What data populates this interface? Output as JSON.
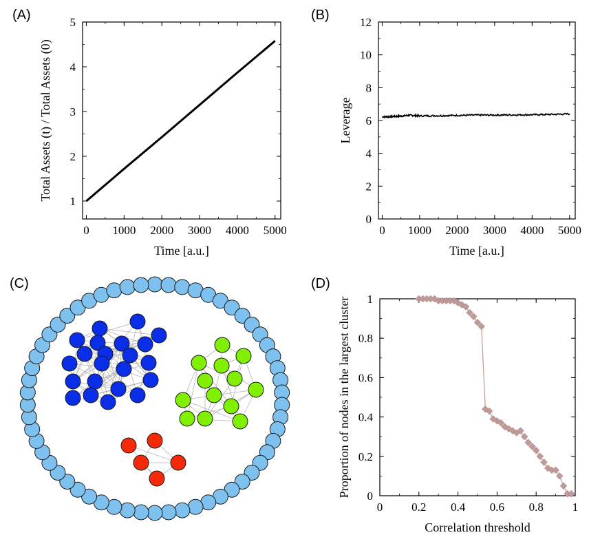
{
  "chart_data": [
    {
      "panel": "(A)",
      "type": "line",
      "xlabel": "Time [a.u.]",
      "ylabel": "Total Assets (t) / Total Assets (0)",
      "xlim": [
        -100,
        5150
      ],
      "ylim": [
        0.6,
        5
      ],
      "xticks": [
        0,
        1000,
        2000,
        3000,
        4000,
        5000
      ],
      "yticks": [
        1,
        2,
        3,
        4,
        5
      ],
      "series": [
        {
          "name": "total assets ratio",
          "x": [
            0,
            1000,
            2000,
            3000,
            4000,
            5000
          ],
          "y": [
            1.0,
            1.72,
            2.43,
            3.15,
            3.87,
            4.58
          ]
        }
      ]
    },
    {
      "panel": "(B)",
      "type": "line",
      "xlabel": "Time [a.u.]",
      "ylabel": "Leverage",
      "xlim": [
        -100,
        5150
      ],
      "ylim": [
        0,
        12
      ],
      "xticks": [
        0,
        1000,
        2000,
        3000,
        4000,
        5000
      ],
      "yticks": [
        0,
        2,
        4,
        6,
        8,
        10,
        12
      ],
      "series": [
        {
          "name": "leverage",
          "x": [
            0,
            250,
            500,
            750,
            1000,
            1500,
            2000,
            2500,
            3000,
            3500,
            4000,
            4500,
            5000
          ],
          "y": [
            6.22,
            6.24,
            6.27,
            6.32,
            6.28,
            6.29,
            6.31,
            6.33,
            6.33,
            6.34,
            6.35,
            6.37,
            6.4
          ]
        }
      ]
    },
    {
      "panel": "(C)",
      "type": "network",
      "clusters": [
        {
          "name": "blue cluster",
          "color": "#0a2ee8",
          "size": 22
        },
        {
          "name": "green cluster",
          "color": "#80f000",
          "size": 14
        },
        {
          "name": "red cluster",
          "color": "#f42a08",
          "size": 5
        },
        {
          "name": "isolated nodes ring",
          "color": "#7ec0ee",
          "size": 58
        }
      ]
    },
    {
      "panel": "(D)",
      "type": "line",
      "xlabel": "Correlation threshold",
      "ylabel": "Proportion of nodes in the largest cluster",
      "xlim": [
        0,
        1
      ],
      "ylim": [
        0,
        1
      ],
      "xticks": [
        0,
        0.2,
        0.4,
        0.6,
        0.8,
        1
      ],
      "yticks": [
        0,
        0.2,
        0.4,
        0.6,
        0.8,
        1
      ],
      "color": "#c09a98",
      "series": [
        {
          "name": "largest cluster proportion",
          "x": [
            0.2,
            0.22,
            0.24,
            0.26,
            0.28,
            0.3,
            0.32,
            0.34,
            0.36,
            0.38,
            0.4,
            0.42,
            0.44,
            0.46,
            0.48,
            0.5,
            0.52,
            0.54,
            0.56,
            0.58,
            0.6,
            0.62,
            0.64,
            0.66,
            0.68,
            0.7,
            0.72,
            0.74,
            0.76,
            0.78,
            0.8,
            0.82,
            0.84,
            0.86,
            0.88,
            0.9,
            0.92,
            0.94,
            0.96,
            0.98
          ],
          "y": [
            1.0,
            1.0,
            1.0,
            1.0,
            1.0,
            0.99,
            0.99,
            0.99,
            0.99,
            0.99,
            0.98,
            0.97,
            0.96,
            0.93,
            0.91,
            0.88,
            0.86,
            0.44,
            0.43,
            0.39,
            0.38,
            0.37,
            0.35,
            0.34,
            0.33,
            0.32,
            0.33,
            0.3,
            0.27,
            0.25,
            0.23,
            0.2,
            0.17,
            0.14,
            0.13,
            0.13,
            0.1,
            0.05,
            0.01,
            0.01
          ]
        }
      ]
    }
  ]
}
